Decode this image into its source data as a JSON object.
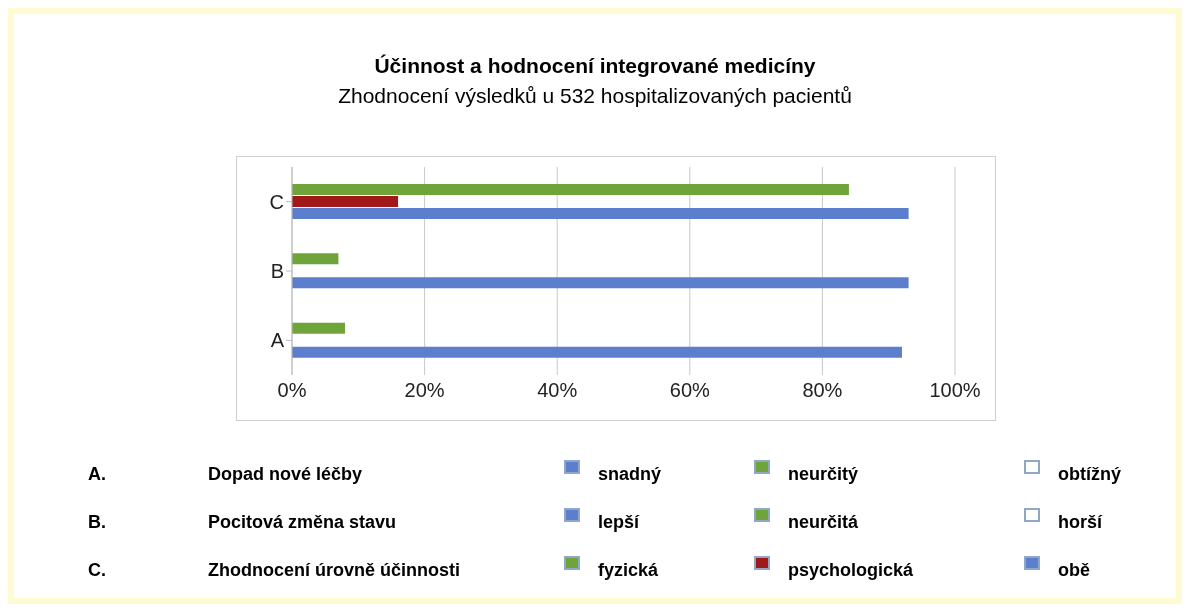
{
  "chart_data": {
    "type": "bar",
    "orientation": "horizontal",
    "title": "Účinnost a hodnocení integrované medicíny",
    "subtitle": "Zhodnocení výsledků u 532 hospitalizovaných pacientů",
    "categories": [
      "C",
      "B",
      "A"
    ],
    "series": [
      {
        "color": "#6ea43a",
        "values": [
          84,
          7,
          8
        ]
      },
      {
        "color": "#a01818",
        "values": [
          16,
          null,
          null
        ]
      },
      {
        "color": "#5b7fcc",
        "values": [
          93,
          93,
          92
        ]
      }
    ],
    "xlim": [
      0,
      100
    ],
    "xticks": [
      {
        "value": 0,
        "label": "0%"
      },
      {
        "value": 20,
        "label": "20%"
      },
      {
        "value": 40,
        "label": "40%"
      },
      {
        "value": 60,
        "label": "60%"
      },
      {
        "value": 80,
        "label": "80%"
      },
      {
        "value": 100,
        "label": "100%"
      }
    ],
    "grid": "x",
    "legend": false,
    "annotations": [
      "A.",
      "Dopad nové léčby",
      "snadný",
      "neurčitý",
      "obtížný",
      "B.",
      "Pocitová změna stavu",
      "lepší",
      "neurčitá",
      "horší",
      "C.",
      "Zhodnocení úrovně účinnosti",
      "fyzická",
      "psychologická",
      "obě"
    ]
  }
}
